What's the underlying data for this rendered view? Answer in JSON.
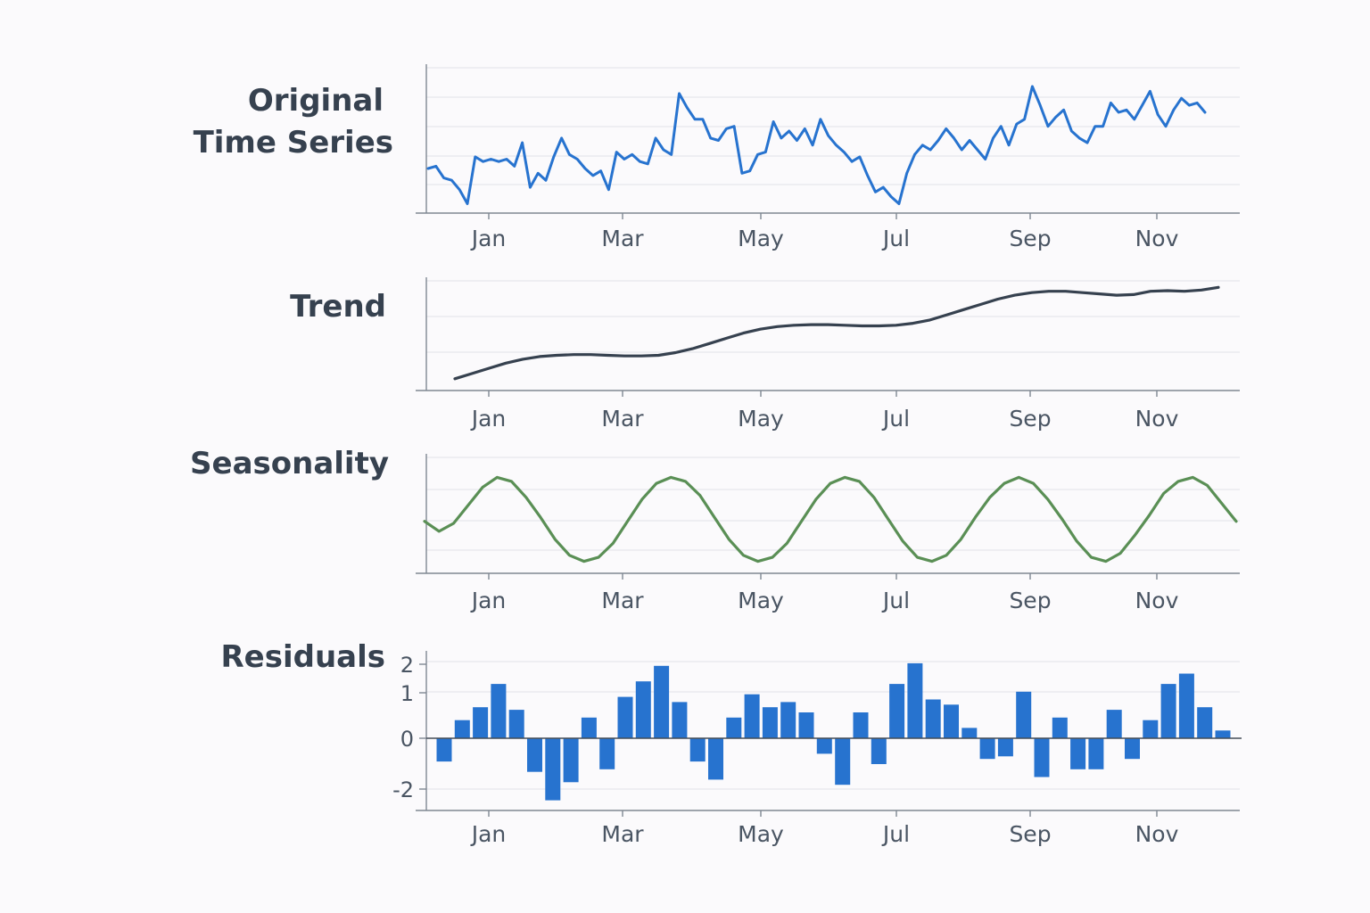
{
  "colors": {
    "original": "#2773cf",
    "trend": "#36414f",
    "seasonality": "#5a8f55",
    "residuals": "#2773cf"
  },
  "chart_data": [
    {
      "type": "line",
      "title": "Original Time Series",
      "title_lines": [
        "Original",
        "Time Series"
      ],
      "xtick_labels": [
        "Jan",
        "Mar",
        "May",
        "Jul",
        "Sep",
        "Nov"
      ],
      "grid": true,
      "series": [
        {
          "values": [
            4.2,
            4.3,
            3.8,
            3.7,
            3.3,
            2.7,
            4.7,
            4.5,
            4.6,
            4.5,
            4.6,
            4.3,
            5.3,
            3.4,
            4.0,
            3.7,
            4.7,
            5.5,
            4.8,
            4.6,
            4.2,
            3.9,
            4.1,
            3.3,
            4.9,
            4.6,
            4.8,
            4.5,
            4.4,
            5.5,
            5.0,
            4.8,
            7.4,
            6.8,
            6.3,
            6.3,
            5.5,
            5.4,
            5.9,
            6.0,
            4.0,
            4.1,
            4.8,
            4.9,
            6.2,
            5.5,
            5.8,
            5.4,
            5.9,
            5.2,
            6.3,
            5.6,
            5.2,
            4.9,
            4.5,
            4.7,
            3.9,
            3.2,
            3.4,
            3.0,
            2.7,
            4.0,
            4.8,
            5.2,
            5.0,
            5.4,
            5.9,
            5.5,
            5.0,
            5.4,
            5.0,
            4.6,
            5.5,
            6.0,
            5.2,
            6.1,
            6.3,
            7.7,
            6.9,
            6.0,
            6.4,
            6.7,
            5.8,
            5.5,
            5.3,
            6.0,
            6.0,
            7.0,
            6.6,
            6.7,
            6.3,
            6.9,
            7.5,
            6.5,
            6.0,
            6.7,
            7.2,
            6.9,
            7.0,
            6.6
          ]
        }
      ]
    },
    {
      "type": "line",
      "title": "Trend",
      "title_lines": [
        "Trend"
      ],
      "xtick_labels": [
        "Jan",
        "Mar",
        "May",
        "Jul",
        "Sep",
        "Nov"
      ],
      "grid": true,
      "series": [
        {
          "values": [
            0.0,
            0.4,
            0.8,
            1.2,
            1.5,
            1.7,
            1.8,
            1.85,
            1.85,
            1.8,
            1.75,
            1.75,
            1.8,
            2.0,
            2.3,
            2.7,
            3.1,
            3.5,
            3.8,
            4.0,
            4.1,
            4.15,
            4.15,
            4.1,
            4.05,
            4.05,
            4.1,
            4.25,
            4.5,
            4.9,
            5.3,
            5.7,
            6.1,
            6.4,
            6.6,
            6.7,
            6.7,
            6.6,
            6.5,
            6.4,
            6.45,
            6.7,
            6.75,
            6.7,
            6.8,
            7.0
          ]
        }
      ]
    },
    {
      "type": "line",
      "title": "Seasonality",
      "title_lines": [
        "Seasonality"
      ],
      "xtick_labels": [
        "Jan",
        "Mar",
        "May",
        "Jul",
        "Sep",
        "Nov"
      ],
      "grid": true,
      "series": [
        {
          "values": [
            -0.05,
            -0.3,
            -0.1,
            0.35,
            0.8,
            1.05,
            0.95,
            0.55,
            0.05,
            -0.5,
            -0.9,
            -1.05,
            -0.95,
            -0.6,
            -0.05,
            0.5,
            0.9,
            1.05,
            0.95,
            0.6,
            0.05,
            -0.5,
            -0.9,
            -1.05,
            -0.95,
            -0.6,
            -0.05,
            0.5,
            0.9,
            1.05,
            0.95,
            0.55,
            0.0,
            -0.55,
            -0.95,
            -1.05,
            -0.9,
            -0.5,
            0.05,
            0.55,
            0.9,
            1.05,
            0.9,
            0.5,
            0.0,
            -0.55,
            -0.95,
            -1.05,
            -0.85,
            -0.4,
            0.1,
            0.65,
            0.95,
            1.05,
            0.85,
            0.4,
            -0.05
          ]
        }
      ]
    },
    {
      "type": "bar",
      "title": "Residuals",
      "title_lines": [
        "Residuals"
      ],
      "xtick_labels": [
        "Jan",
        "Mar",
        "May",
        "Jul",
        "Sep",
        "Nov"
      ],
      "ytick_labels": [
        "2",
        "1",
        "0",
        "-2"
      ],
      "yticks": [
        2,
        1,
        0,
        -2
      ],
      "grid": true,
      "values": [
        -0.9,
        0.7,
        1.2,
        2.1,
        1.1,
        -1.3,
        -2.4,
        -1.7,
        0.8,
        -1.2,
        1.6,
        2.2,
        2.8,
        1.4,
        -0.9,
        -1.6,
        0.8,
        1.7,
        1.2,
        1.4,
        1.0,
        -0.6,
        -1.8,
        1.0,
        -1.0,
        2.1,
        2.9,
        1.5,
        1.3,
        0.4,
        -0.8,
        -0.7,
        1.8,
        -1.5,
        0.8,
        -1.2,
        -1.2,
        1.1,
        -0.8,
        0.7,
        2.1,
        2.5,
        1.2,
        0.3
      ]
    }
  ]
}
